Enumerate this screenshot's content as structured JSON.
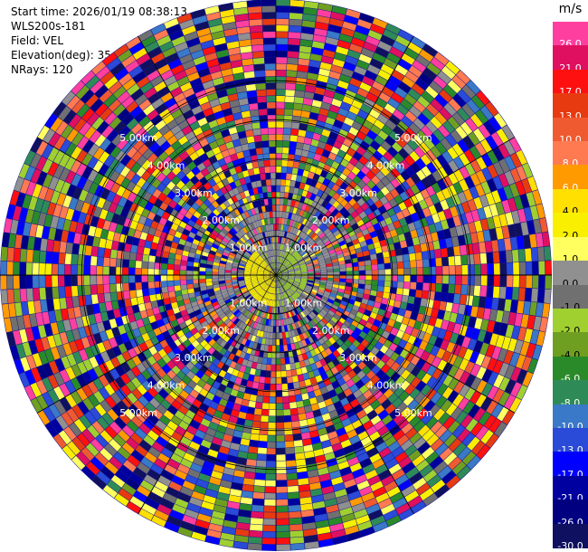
{
  "header": {
    "start_time": "Start time: 2026/01/19 08:38:13",
    "instrument": "WLS200s-181",
    "field": "Field: VEL",
    "elevation": "Elevation(deg): 35.00",
    "nrays": "NRays: 120"
  },
  "ppi": {
    "rings": [
      {
        "km": 1,
        "label": "1.00km"
      },
      {
        "km": 2,
        "label": "2.00km"
      },
      {
        "km": 3,
        "label": "3.00km"
      },
      {
        "km": 4,
        "label": "4.00km"
      },
      {
        "km": 5,
        "label": "5.00km"
      }
    ],
    "max_range_km": 7.1,
    "rays": 120,
    "gates": 43,
    "spoke_count": 12,
    "label_azimuths_deg": [
      45,
      135,
      225,
      315
    ]
  },
  "colorbar": {
    "unit": "m/s",
    "entries": [
      {
        "label": "26.0",
        "color": "#ff3fa0"
      },
      {
        "label": "21.0",
        "color": "#e01060"
      },
      {
        "label": "17.0",
        "color": "#ff1010"
      },
      {
        "label": "13.0",
        "color": "#e83a10"
      },
      {
        "label": "10.0",
        "color": "#f05a30"
      },
      {
        "label": "8.0",
        "color": "#ff7a50"
      },
      {
        "label": "6.0",
        "color": "#ff9a00"
      },
      {
        "label": "4.0",
        "color": "#ffe000"
      },
      {
        "label": "2.0",
        "color": "#f8f000"
      },
      {
        "label": "1.0",
        "color": "#ffff60"
      },
      {
        "label": "0.0",
        "color": "#909090"
      },
      {
        "label": "-1.0",
        "color": "#707070"
      },
      {
        "label": "-2.0",
        "color": "#a0d030"
      },
      {
        "label": "-4.0",
        "color": "#6f9f20"
      },
      {
        "label": "-6.0",
        "color": "#2a8a2a"
      },
      {
        "label": "-8.0",
        "color": "#2e8b57"
      },
      {
        "label": "-10.0",
        "color": "#3a78c8"
      },
      {
        "label": "-13.0",
        "color": "#2a4ad8"
      },
      {
        "label": "-17.0",
        "color": "#0000ff"
      },
      {
        "label": "-21.0",
        "color": "#0000a0"
      },
      {
        "label": "-26.0",
        "color": "#000080"
      },
      {
        "label": "-30.0",
        "color": "#101060"
      }
    ]
  }
}
